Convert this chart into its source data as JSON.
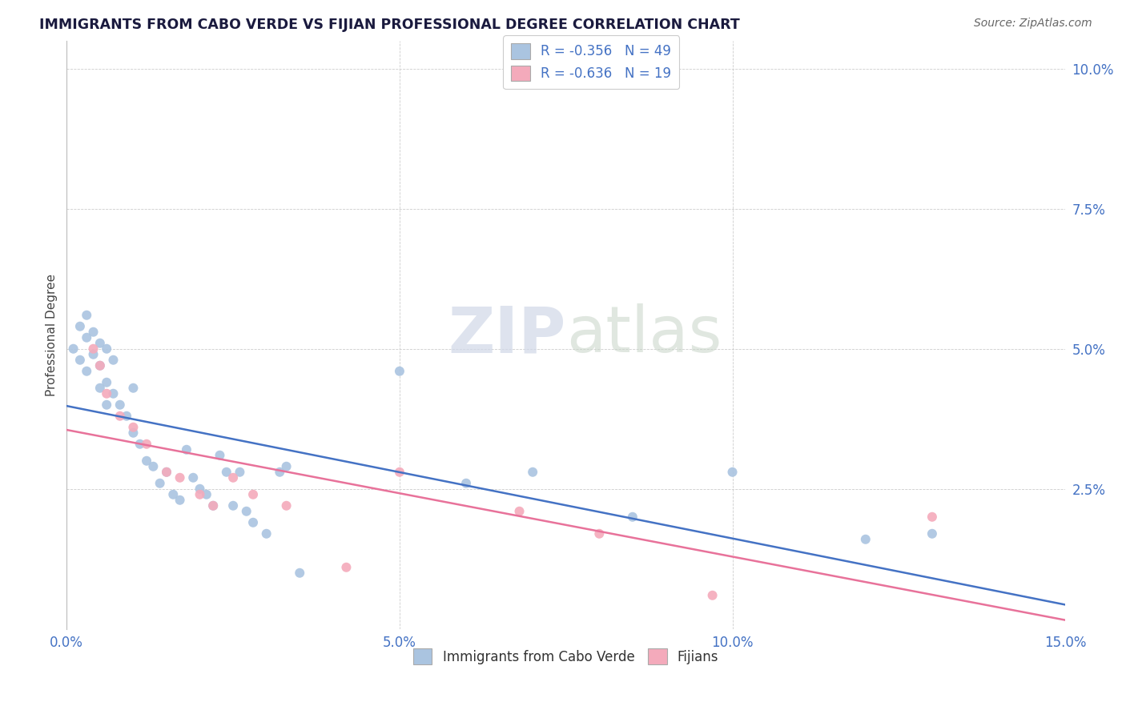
{
  "title": "IMMIGRANTS FROM CABO VERDE VS FIJIAN PROFESSIONAL DEGREE CORRELATION CHART",
  "source": "Source: ZipAtlas.com",
  "ylabel_label": "Professional Degree",
  "x_min": 0.0,
  "x_max": 0.15,
  "y_min": 0.0,
  "y_max": 0.105,
  "x_ticks": [
    0.0,
    0.05,
    0.1,
    0.15
  ],
  "x_tick_labels": [
    "0.0%",
    "5.0%",
    "10.0%",
    "15.0%"
  ],
  "y_ticks": [
    0.0,
    0.025,
    0.05,
    0.075,
    0.1
  ],
  "y_tick_labels": [
    "",
    "2.5%",
    "5.0%",
    "7.5%",
    "10.0%"
  ],
  "cabo_verde_color": "#aac4e0",
  "fijian_color": "#f4aabb",
  "cabo_verde_line_color": "#4472c4",
  "fijian_line_color": "#e8729a",
  "cabo_verde_R": -0.356,
  "cabo_verde_N": 49,
  "fijian_R": -0.636,
  "fijian_N": 19,
  "watermark_text": "ZIPatlas",
  "cv_x": [
    0.001,
    0.002,
    0.002,
    0.003,
    0.003,
    0.003,
    0.004,
    0.004,
    0.005,
    0.005,
    0.005,
    0.006,
    0.006,
    0.006,
    0.007,
    0.007,
    0.008,
    0.009,
    0.01,
    0.01,
    0.011,
    0.012,
    0.013,
    0.014,
    0.015,
    0.016,
    0.017,
    0.018,
    0.019,
    0.02,
    0.021,
    0.022,
    0.023,
    0.024,
    0.025,
    0.026,
    0.027,
    0.028,
    0.03,
    0.032,
    0.033,
    0.035,
    0.05,
    0.06,
    0.07,
    0.085,
    0.1,
    0.12,
    0.13
  ],
  "cv_y": [
    0.05,
    0.054,
    0.048,
    0.056,
    0.052,
    0.046,
    0.053,
    0.049,
    0.051,
    0.047,
    0.043,
    0.05,
    0.044,
    0.04,
    0.048,
    0.042,
    0.04,
    0.038,
    0.043,
    0.035,
    0.033,
    0.03,
    0.029,
    0.026,
    0.028,
    0.024,
    0.023,
    0.032,
    0.027,
    0.025,
    0.024,
    0.022,
    0.031,
    0.028,
    0.022,
    0.028,
    0.021,
    0.019,
    0.017,
    0.028,
    0.029,
    0.01,
    0.046,
    0.026,
    0.028,
    0.02,
    0.028,
    0.016,
    0.017
  ],
  "fij_x": [
    0.004,
    0.005,
    0.006,
    0.008,
    0.01,
    0.012,
    0.015,
    0.017,
    0.02,
    0.022,
    0.025,
    0.028,
    0.033,
    0.042,
    0.05,
    0.068,
    0.08,
    0.097,
    0.13
  ],
  "fij_y": [
    0.05,
    0.047,
    0.042,
    0.038,
    0.036,
    0.033,
    0.028,
    0.027,
    0.024,
    0.022,
    0.027,
    0.024,
    0.022,
    0.011,
    0.028,
    0.021,
    0.017,
    0.006,
    0.02
  ],
  "cv_line_x0": 0.0,
  "cv_line_y0": 0.043,
  "cv_line_x1": 0.15,
  "cv_line_y1": 0.001,
  "fij_line_x0": 0.0,
  "fij_line_y0": 0.035,
  "fij_line_x1": 0.15,
  "fij_line_y1": 0.001
}
